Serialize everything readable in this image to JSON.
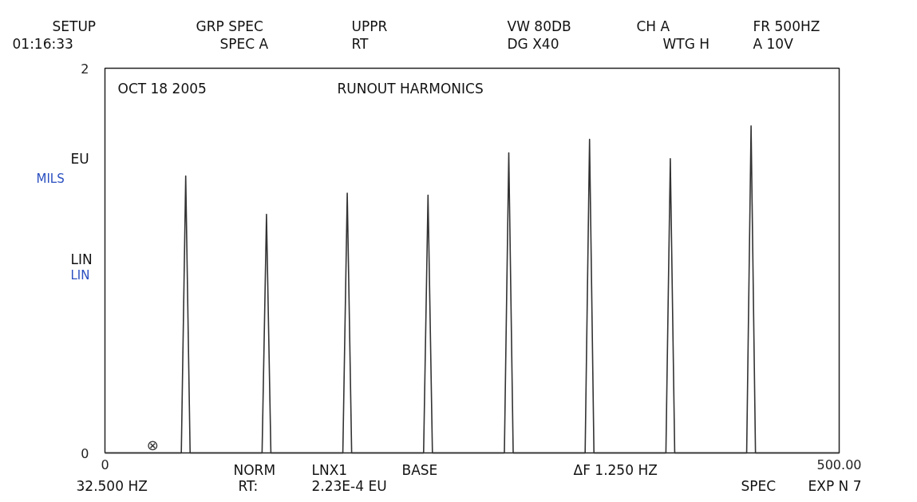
{
  "chart_data": {
    "type": "line",
    "title": "RUNOUT HARMONICS",
    "x": [
      0,
      52,
      55,
      58,
      107,
      110,
      113,
      162,
      165,
      168,
      217,
      220,
      223,
      272,
      275,
      278,
      327,
      330,
      333,
      382,
      385,
      388,
      437,
      440,
      443,
      500
    ],
    "series": [
      {
        "color": "#333333",
        "values": [
          0,
          0,
          1.44,
          0,
          0,
          1.24,
          0,
          0,
          1.35,
          0,
          0,
          1.34,
          0,
          0,
          1.56,
          0,
          0,
          1.63,
          0,
          0,
          1.53,
          0,
          0,
          1.7,
          0,
          0
        ]
      }
    ],
    "xlim": [
      0,
      500
    ],
    "xticks": [
      0,
      {
        "value": 500,
        "label": "500.00"
      }
    ],
    "ylim": [
      0,
      2
    ],
    "yticks": [
      0,
      2
    ],
    "marker": "none",
    "line_style": "solid",
    "annotations": [
      "SETUP",
      "01:16:33",
      "GRP SPEC",
      "SPEC A",
      "UPPR",
      "RT",
      "VW  80DB",
      "DG X40",
      "CH  A",
      "WTG H",
      "FR 500HZ",
      "A 10V",
      "OCT 18 2005",
      "EU",
      "MILS",
      "LIN",
      "LIN",
      "32.500 HZ",
      "NORM",
      "RT:",
      "LNX1",
      "2.23E-4 EU",
      "BASE",
      "ΔF 1.250 HZ",
      "SPEC",
      "EXP N 7",
      {
        "text": "⊗",
        "x": 32.5,
        "y": 0
      }
    ]
  }
}
